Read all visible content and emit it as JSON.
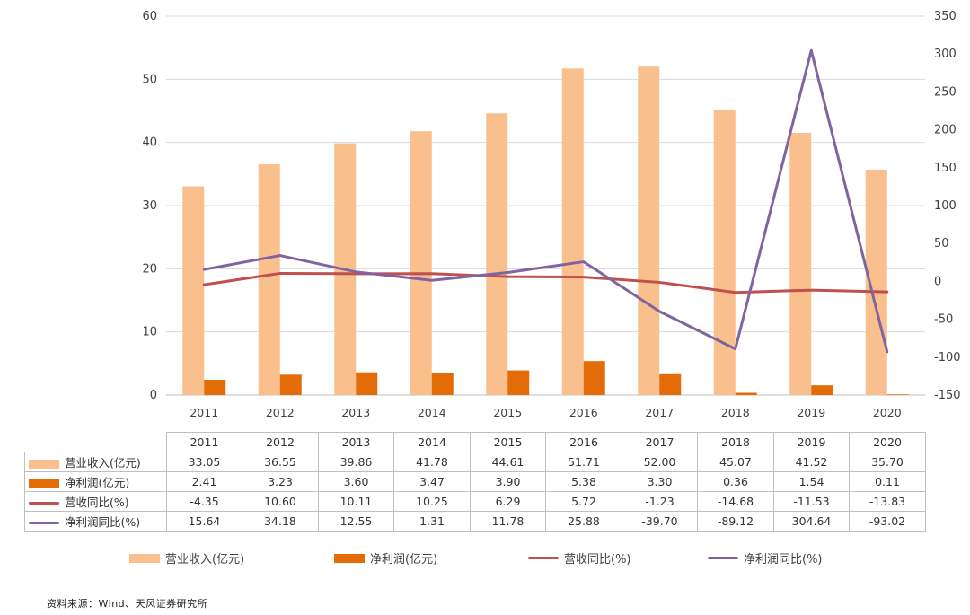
{
  "chart_data": {
    "type": "bar",
    "categories": [
      "2011",
      "2012",
      "2013",
      "2014",
      "2015",
      "2016",
      "2017",
      "2018",
      "2019",
      "2020"
    ],
    "series": [
      {
        "name": "营业收入(亿元)",
        "type": "bar",
        "axis": "left",
        "color": "#F9C08E",
        "values": [
          33.05,
          36.55,
          39.86,
          41.78,
          44.61,
          51.71,
          52.0,
          45.07,
          41.52,
          35.7
        ]
      },
      {
        "name": "净利润(亿元)",
        "type": "bar",
        "axis": "left",
        "color": "#E36C09",
        "values": [
          2.41,
          3.23,
          3.6,
          3.47,
          3.9,
          5.38,
          3.3,
          0.36,
          1.54,
          0.11
        ]
      },
      {
        "name": "营收同比(%)",
        "type": "line",
        "axis": "right",
        "color": "#C0504D",
        "values": [
          -4.35,
          10.6,
          10.11,
          10.25,
          6.29,
          5.72,
          -1.23,
          -14.68,
          -11.53,
          -13.83
        ]
      },
      {
        "name": "净利润同比(%)",
        "type": "line",
        "axis": "right",
        "color": "#8064A2",
        "values": [
          15.64,
          34.18,
          12.55,
          1.31,
          11.78,
          25.88,
          -39.7,
          -89.12,
          304.64,
          -93.02
        ]
      }
    ],
    "y_left": {
      "ylim": [
        0,
        60
      ],
      "ticks": [
        0,
        10,
        20,
        30,
        40,
        50,
        60
      ]
    },
    "y_right": {
      "ylim": [
        -150,
        350
      ],
      "ticks": [
        -150,
        -100,
        -50,
        0,
        50,
        100,
        150,
        200,
        250,
        300,
        350
      ]
    },
    "grid": true,
    "data_table": {
      "rows": [
        {
          "label": "营业收入(亿元)",
          "cells": [
            "33.05",
            "36.55",
            "39.86",
            "41.78",
            "44.61",
            "51.71",
            "52.00",
            "45.07",
            "41.52",
            "35.70"
          ]
        },
        {
          "label": "净利润(亿元)",
          "cells": [
            "2.41",
            "3.23",
            "3.60",
            "3.47",
            "3.90",
            "5.38",
            "3.30",
            "0.36",
            "1.54",
            "0.11"
          ]
        },
        {
          "label": "营收同比(%)",
          "cells": [
            "-4.35",
            "10.60",
            "10.11",
            "10.25",
            "6.29",
            "5.72",
            "-1.23",
            "-14.68",
            "-11.53",
            "-13.83"
          ]
        },
        {
          "label": "净利润同比(%)",
          "cells": [
            "15.64",
            "34.18",
            "12.55",
            "1.31",
            "11.78",
            "25.88",
            "-39.70",
            "-89.12",
            "304.64",
            "-93.02"
          ]
        }
      ]
    },
    "legend": {
      "position": "bottom",
      "items": [
        "营业收入(亿元)",
        "净利润(亿元)",
        "营收同比(%)",
        "净利润同比(%)"
      ]
    },
    "source": "资料来源：Wind、天风证券研究所"
  }
}
